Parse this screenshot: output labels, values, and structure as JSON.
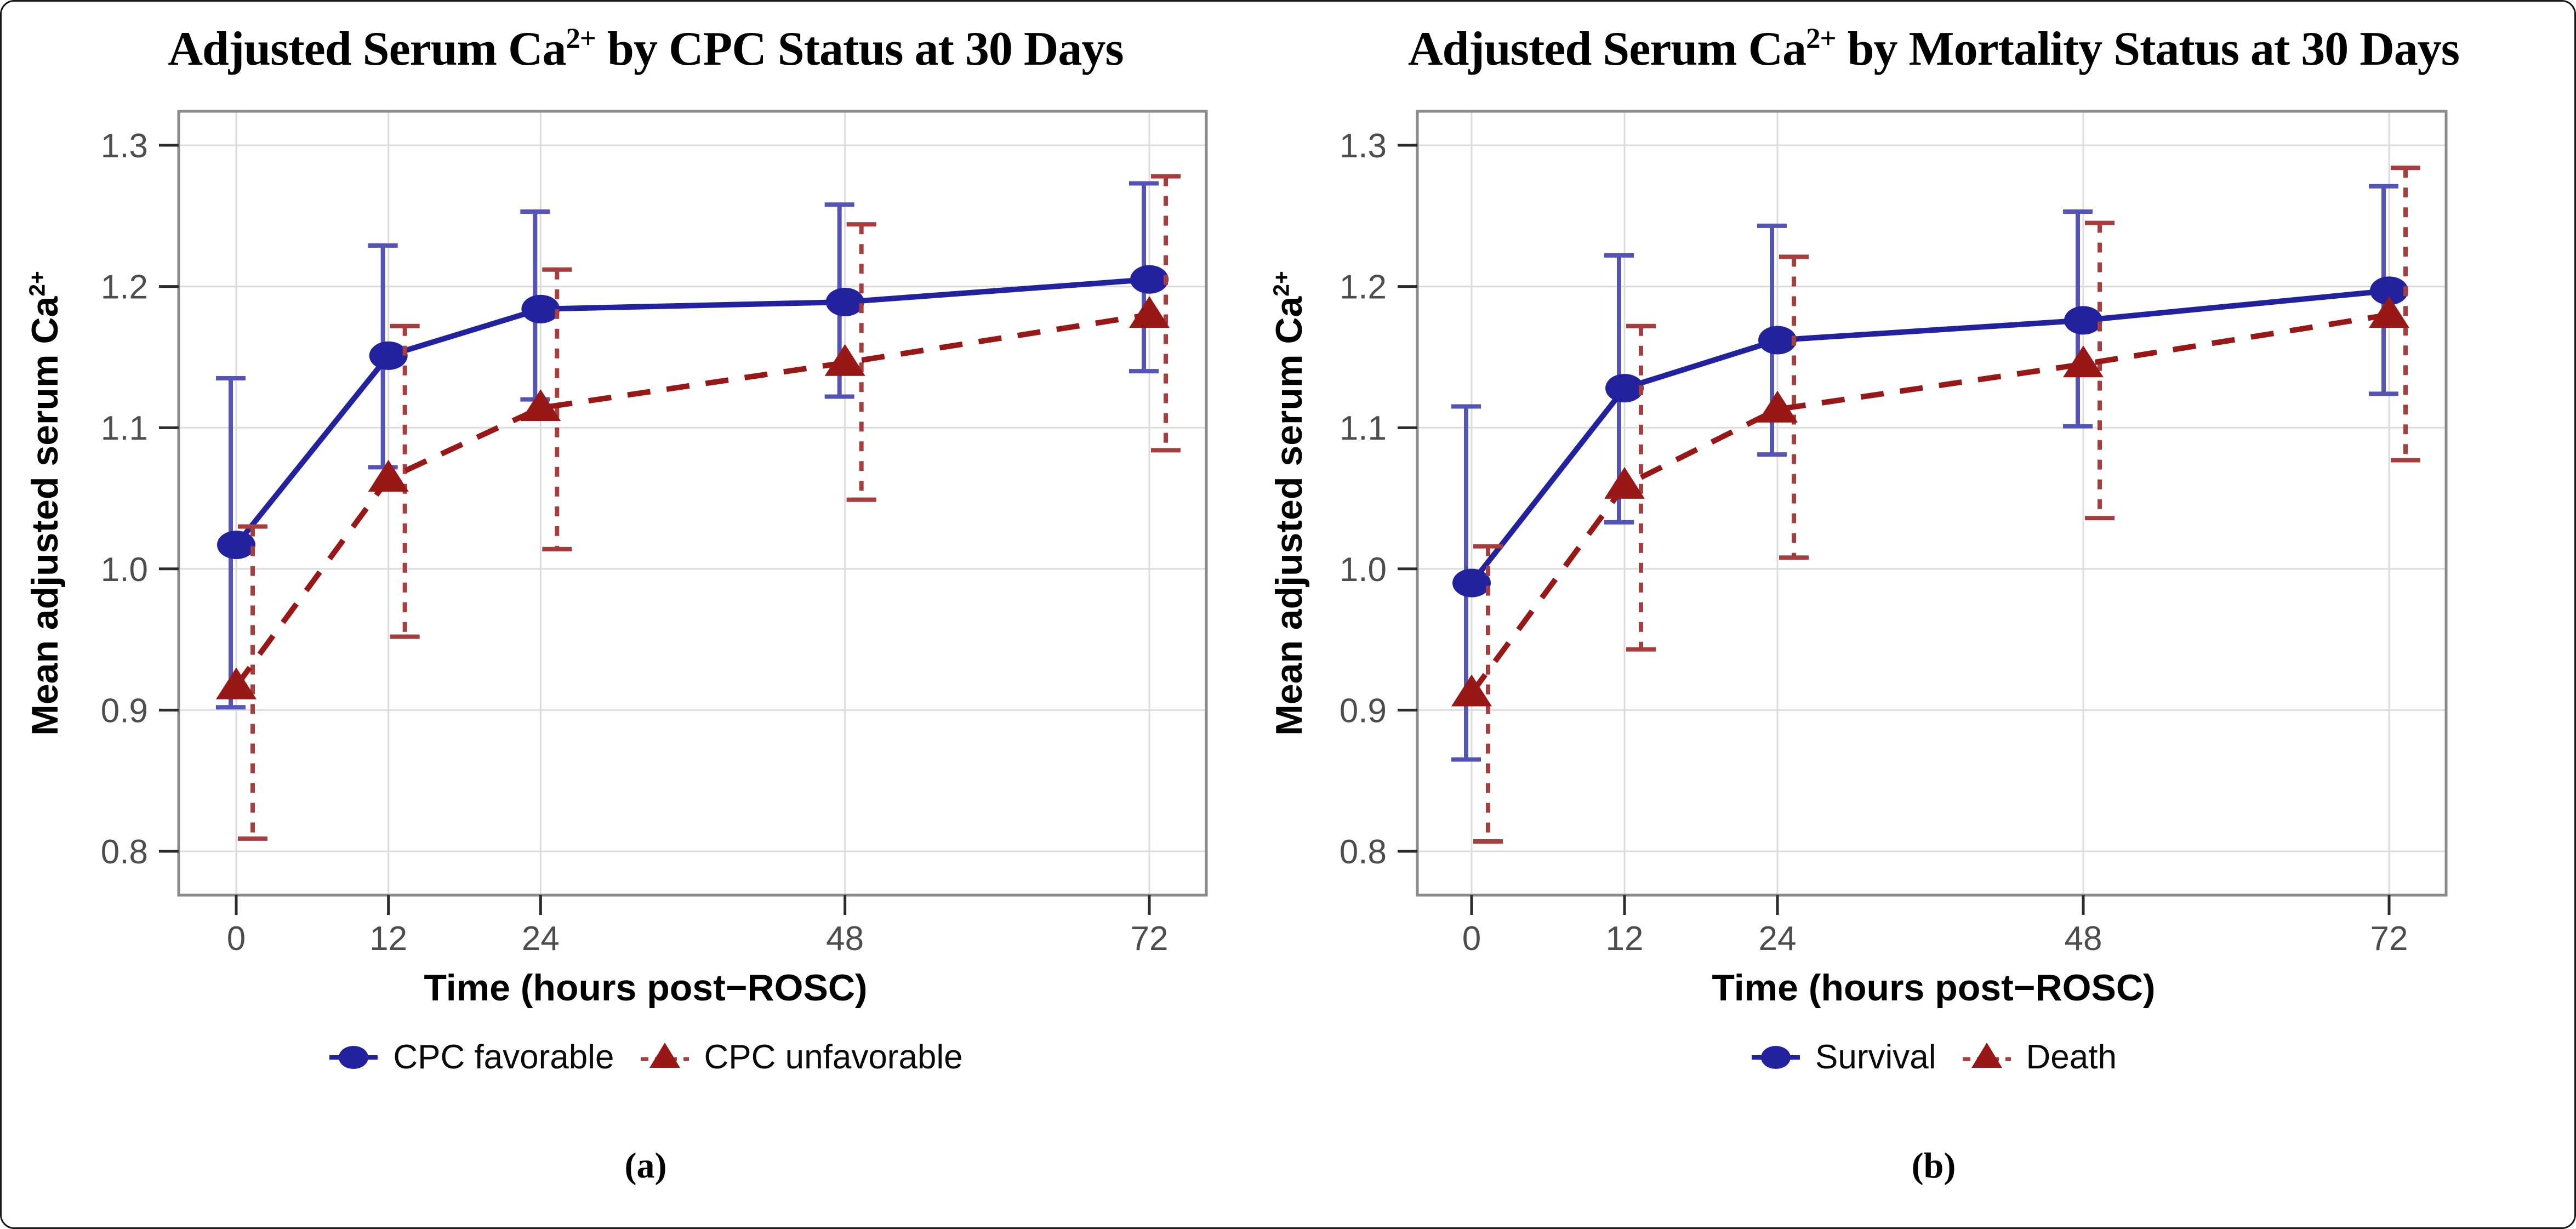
{
  "figure": {
    "background": "#ffffff",
    "border_color": "#161616",
    "grid_color": "#DCDCDC",
    "panel_border_color": "#8A8A8A",
    "tick_label_color": "#4D4D4D"
  },
  "chart_data": [
    {
      "type": "line",
      "panel": "a",
      "caption": "(a)",
      "title": "Adjusted Serum Ca²⁺ by CPC Status at 30 Days",
      "title_main": "Adjusted Serum Ca",
      "title_sup": "2+",
      "title_rest": " by CPC Status at 30 Days",
      "xlabel": "Time (hours post−ROSC)",
      "ylabel": "Mean adjusted serum Ca²⁺",
      "ylabel_main": "Mean adjusted serum Ca",
      "ylabel_sup": "2+",
      "x": [
        0,
        12,
        24,
        48,
        72
      ],
      "x_tick_labels": [
        "0",
        "12",
        "24",
        "48",
        "72"
      ],
      "y_ticks": [
        0.8,
        0.9,
        1.0,
        1.1,
        1.2,
        1.3
      ],
      "y_tick_labels": [
        "0.8",
        "0.9",
        "1.0",
        "1.1",
        "1.2",
        "1.3"
      ],
      "ylim": [
        0.77,
        1.325
      ],
      "grid": true,
      "legend_position": "bottom",
      "error_bars": true,
      "series": [
        {
          "name": "CPC favorable",
          "marker": "circle",
          "line_style": "solid",
          "color": "#22229E",
          "error_color": "#5353B8",
          "values": [
            1.017,
            1.151,
            1.184,
            1.189,
            1.205
          ],
          "ci_lower": [
            0.902,
            1.072,
            1.12,
            1.122,
            1.14
          ],
          "ci_upper": [
            1.135,
            1.229,
            1.253,
            1.258,
            1.273
          ]
        },
        {
          "name": "CPC unfavorable",
          "marker": "triangle",
          "line_style": "dashed",
          "color": "#981717",
          "error_color": "#A73D3D",
          "values": [
            0.917,
            1.064,
            1.114,
            1.146,
            1.18
          ],
          "ci_lower": [
            0.809,
            0.952,
            1.014,
            1.049,
            1.084
          ],
          "ci_upper": [
            1.03,
            1.172,
            1.212,
            1.244,
            1.278
          ]
        }
      ]
    },
    {
      "type": "line",
      "panel": "b",
      "caption": "(b)",
      "title": "Adjusted Serum Ca²⁺ by Mortality Status at 30 Days",
      "title_main": "Adjusted Serum Ca",
      "title_sup": "2+",
      "title_rest": " by Mortality Status at 30 Days",
      "xlabel": "Time (hours post−ROSC)",
      "ylabel": "Mean adjusted serum Ca²⁺",
      "ylabel_main": "Mean adjusted serum Ca",
      "ylabel_sup": "2+",
      "x": [
        0,
        12,
        24,
        48,
        72
      ],
      "x_tick_labels": [
        "0",
        "12",
        "24",
        "48",
        "72"
      ],
      "y_ticks": [
        0.8,
        0.9,
        1.0,
        1.1,
        1.2,
        1.3
      ],
      "y_tick_labels": [
        "0.8",
        "0.9",
        "1.0",
        "1.1",
        "1.2",
        "1.3"
      ],
      "ylim": [
        0.77,
        1.325
      ],
      "grid": true,
      "legend_position": "bottom",
      "error_bars": true,
      "series": [
        {
          "name": "Survival",
          "marker": "circle",
          "line_style": "solid",
          "color": "#22229E",
          "error_color": "#5353B8",
          "values": [
            0.99,
            1.128,
            1.162,
            1.176,
            1.197
          ],
          "ci_lower": [
            0.865,
            1.033,
            1.081,
            1.101,
            1.124
          ],
          "ci_upper": [
            1.115,
            1.222,
            1.243,
            1.253,
            1.271
          ]
        },
        {
          "name": "Death",
          "marker": "triangle",
          "line_style": "dashed",
          "color": "#981717",
          "error_color": "#A73D3D",
          "values": [
            0.912,
            1.059,
            1.113,
            1.145,
            1.18
          ],
          "ci_lower": [
            0.807,
            0.943,
            1.008,
            1.036,
            1.077
          ],
          "ci_upper": [
            1.016,
            1.172,
            1.221,
            1.245,
            1.284
          ]
        }
      ]
    }
  ]
}
